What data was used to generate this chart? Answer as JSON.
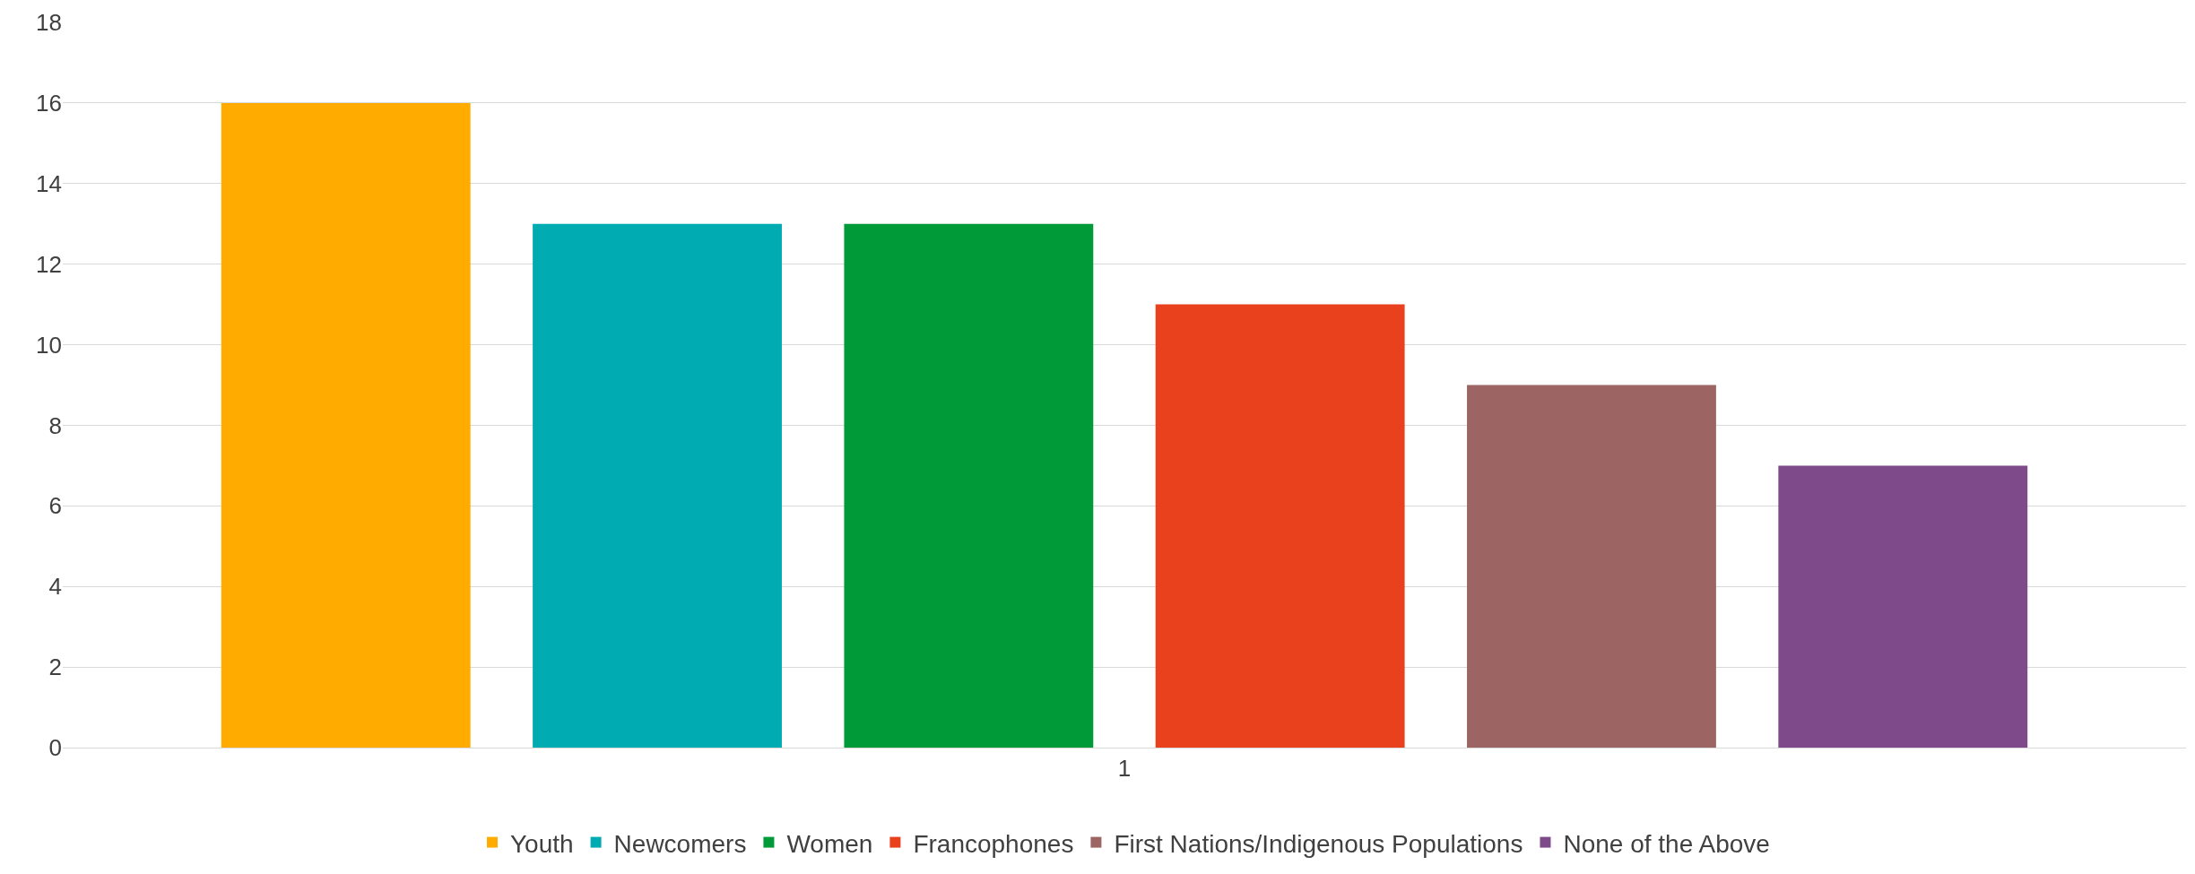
{
  "chart_data": {
    "type": "bar",
    "categories": [
      "1"
    ],
    "series": [
      {
        "name": "Youth",
        "color": "#ffab00",
        "values": [
          16
        ]
      },
      {
        "name": "Newcomers",
        "color": "#00abb1",
        "values": [
          13
        ]
      },
      {
        "name": "Women",
        "color": "#009a38",
        "values": [
          13
        ]
      },
      {
        "name": "Francophones",
        "color": "#e9411e",
        "values": [
          11
        ]
      },
      {
        "name": "First Nations/Indigenous Populations",
        "color": "#9c6462",
        "values": [
          9
        ]
      },
      {
        "name": "None of the Above",
        "color": "#7e4a8a",
        "values": [
          7
        ]
      }
    ],
    "ylim": [
      0,
      18
    ],
    "yticks": [
      0,
      2,
      4,
      6,
      8,
      10,
      12,
      14,
      16,
      18
    ],
    "grid": "y",
    "legend": "bottom"
  }
}
